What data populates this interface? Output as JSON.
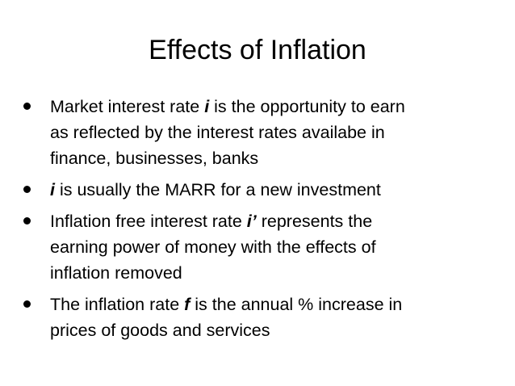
{
  "title": "Effects of Inflation",
  "bullets": [
    {
      "lines": [
        [
          {
            "text": "Market interest rate "
          },
          {
            "text": "i",
            "emphasis": true
          },
          {
            "text": " is the opportunity to earn"
          }
        ],
        [
          {
            "text": "as reflected by the interest rates availabe in"
          }
        ],
        [
          {
            "text": "finance, businesses, banks"
          }
        ]
      ]
    },
    {
      "lines": [
        [
          {
            "text": "i",
            "emphasis": true
          },
          {
            "text": " is usually the MARR for a new investment"
          }
        ]
      ]
    },
    {
      "lines": [
        [
          {
            "text": "Inflation free interest rate "
          },
          {
            "text": "i’",
            "emphasis": true
          },
          {
            "text": " represents the"
          }
        ],
        [
          {
            "text": "earning power of money with the effects of"
          }
        ],
        [
          {
            "text": "inflation removed"
          }
        ]
      ]
    },
    {
      "lines": [
        [
          {
            "text": "The inflation rate "
          },
          {
            "text": "f",
            "emphasis": true
          },
          {
            "text": " is the annual % increase in"
          }
        ],
        [
          {
            "text": "prices of goods and services"
          }
        ]
      ]
    }
  ]
}
